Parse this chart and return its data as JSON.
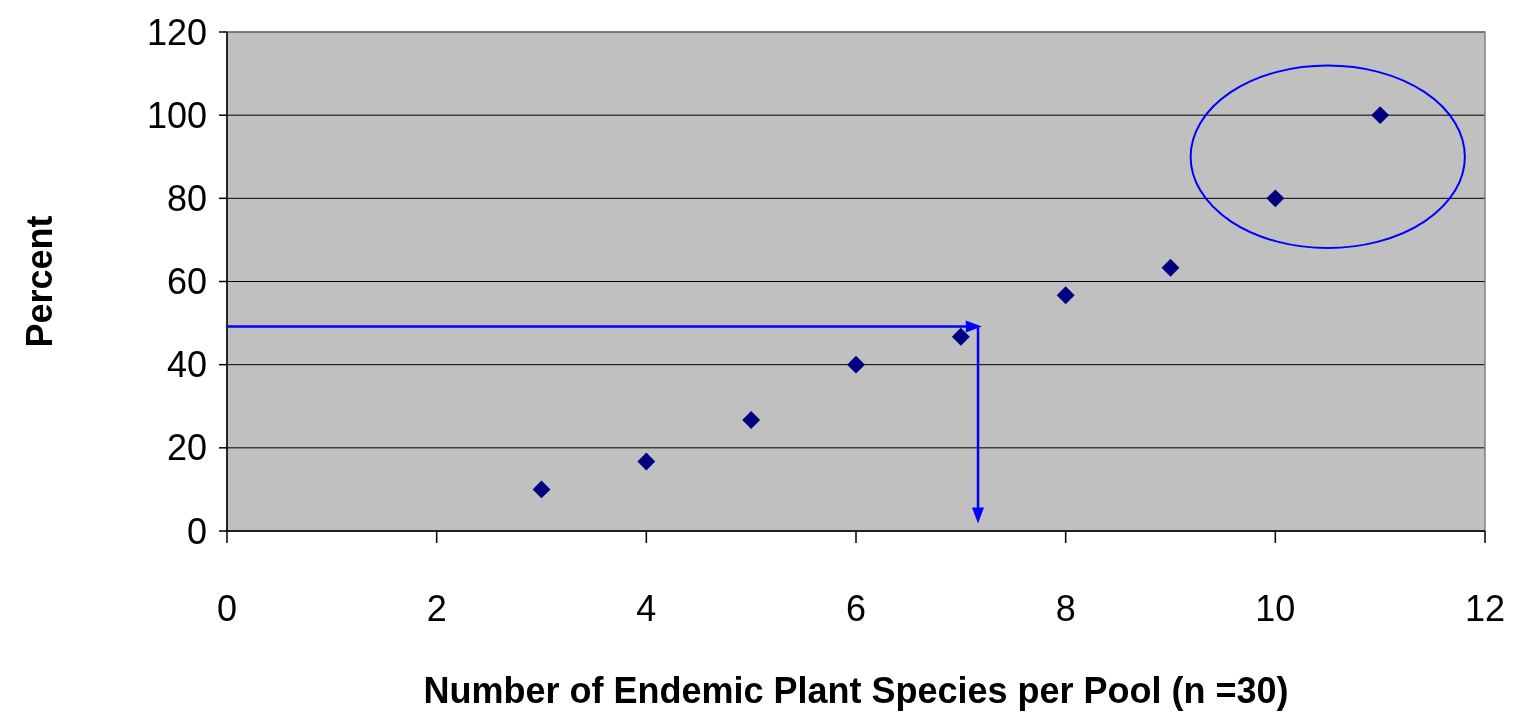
{
  "chart_data": {
    "type": "scatter",
    "xlabel": "Number of Endemic Plant Species per Pool (n =30)",
    "ylabel": "Percent",
    "x": [
      3,
      4,
      5,
      6,
      7,
      8,
      9,
      10,
      11
    ],
    "series": [
      {
        "color": "#000080",
        "values": [
          10,
          16.7,
          26.7,
          40,
          46.7,
          56.7,
          63.3,
          80,
          100
        ]
      }
    ],
    "xlim": [
      0,
      12
    ],
    "xticks": [
      0,
      2,
      4,
      6,
      8,
      10,
      12
    ],
    "ylim": [
      0,
      120
    ],
    "yticks": [
      0,
      20,
      40,
      60,
      80,
      100,
      120
    ],
    "grid": "y",
    "marker": "diamond"
  }
}
